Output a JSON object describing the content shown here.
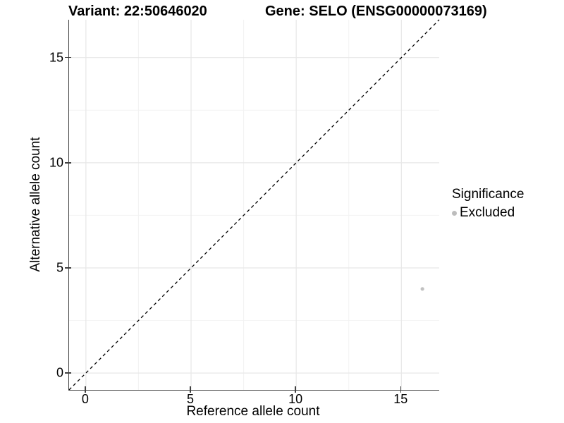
{
  "chart_data": {
    "type": "scatter",
    "title_left": "Variant: 22:50646020",
    "title_right": "Gene: SELO (ENSG00000073169)",
    "xlabel": "Reference allele count",
    "ylabel": "Alternative allele count",
    "xlim": [
      -0.8,
      16.8
    ],
    "ylim": [
      -0.8,
      16.8
    ],
    "x_ticks": [
      0,
      5,
      10,
      15
    ],
    "y_ticks": [
      0,
      5,
      10,
      15
    ],
    "x_minor_ticks": [
      2.5,
      7.5,
      12.5
    ],
    "y_minor_ticks": [
      2.5,
      7.5,
      12.5
    ],
    "grid": true,
    "identity_line": {
      "type": "dashed",
      "x1": -0.8,
      "y1": -0.8,
      "x2": 16.8,
      "y2": 16.8,
      "color": "#000000"
    },
    "series": [
      {
        "name": "Excluded",
        "color": "#c1c1c1",
        "points": [
          {
            "x": 16,
            "y": 4
          }
        ]
      }
    ],
    "legend": {
      "position": "right",
      "title": "Significance",
      "entries": [
        {
          "label": "Excluded",
          "color": "#bdbdbd"
        }
      ]
    },
    "colors": {
      "axis_line": "#404040",
      "grid_major": "#e7e7e7",
      "grid_minor": "#f2f2f2",
      "point": "#c1c1c1",
      "text": "#000000"
    }
  }
}
